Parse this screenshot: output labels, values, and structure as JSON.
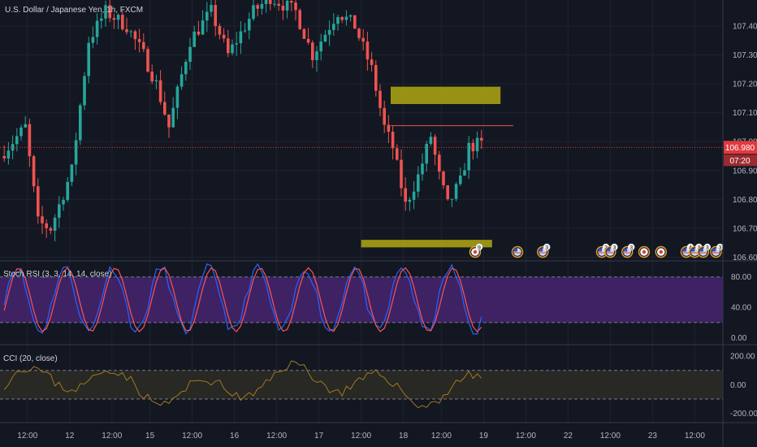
{
  "chart_data": {
    "type": "candlestick",
    "title": "U.S. Dollar / Japanese Yen, 1h, FXCM",
    "x_tick_labels": [
      "12:00",
      "12",
      "12:00",
      "15",
      "12:00",
      "16",
      "12:00",
      "17",
      "12:00",
      "18",
      "12:00",
      "19",
      "12:00",
      "22",
      "12:00",
      "23",
      "12:00"
    ],
    "price_axis": {
      "ticks": [
        "107.400",
        "107.300",
        "107.200",
        "107.100",
        "107.000",
        "106.900",
        "106.800",
        "106.700",
        "106.600"
      ],
      "ylim": [
        106.59,
        107.49
      ],
      "last_price": "106.980",
      "countdown": "07:20"
    },
    "zones": [
      {
        "from_bar": 92,
        "to_bar": 118,
        "low": 107.13,
        "high": 107.19
      },
      {
        "from_bar": 85,
        "to_bar": 116,
        "low": 106.634,
        "high": 106.66
      }
    ],
    "resistance_line": {
      "from_bar": 92,
      "to_bar": 121,
      "value": 107.055
    },
    "events": [
      {
        "bar": 112,
        "icon": "flag-target",
        "count": "9"
      },
      {
        "bar": 122,
        "icon": "flag-us",
        "count": ""
      },
      {
        "bar": 128,
        "icon": "flag-us",
        "count": "3"
      },
      {
        "bar": 142,
        "icon": "flag-us",
        "count": "2"
      },
      {
        "bar": 144,
        "icon": "flag-us",
        "count": "3"
      },
      {
        "bar": 148,
        "icon": "flag-us",
        "count": "3"
      },
      {
        "bar": 152,
        "icon": "flag-target",
        "count": ""
      },
      {
        "bar": 156,
        "icon": "flag-target",
        "count": ""
      },
      {
        "bar": 162,
        "icon": "flag-us",
        "count": "4"
      },
      {
        "bar": 164,
        "icon": "flag-us",
        "count": "3"
      },
      {
        "bar": 166,
        "icon": "flag-us",
        "count": "3"
      },
      {
        "bar": 169,
        "icon": "flag-us",
        "count": "3"
      }
    ],
    "indicators": [
      {
        "title": "Stoch RSI (3, 3, 14, 14, close)",
        "ticks": [
          "80.00",
          "40.00",
          "0.00"
        ],
        "band": [
          20,
          80
        ],
        "ylim": [
          -8,
          100
        ]
      },
      {
        "title": "CCI (20, close)",
        "ticks": [
          "200.00",
          "0.00",
          "-200.00"
        ],
        "band": [
          -100,
          100
        ],
        "ylim": [
          -265,
          275
        ]
      }
    ]
  },
  "colors": {
    "background": "#131722",
    "bull": "#26a69a",
    "bear": "#ef5350",
    "zone": "#b9b112",
    "stoch_k": "#2962ff",
    "stoch_d": "#ff5252",
    "stoch_band": "#4a2576",
    "cci_line": "#a07a1c",
    "cci_band": "#2b2a26",
    "last_price": "#e03a3e"
  }
}
